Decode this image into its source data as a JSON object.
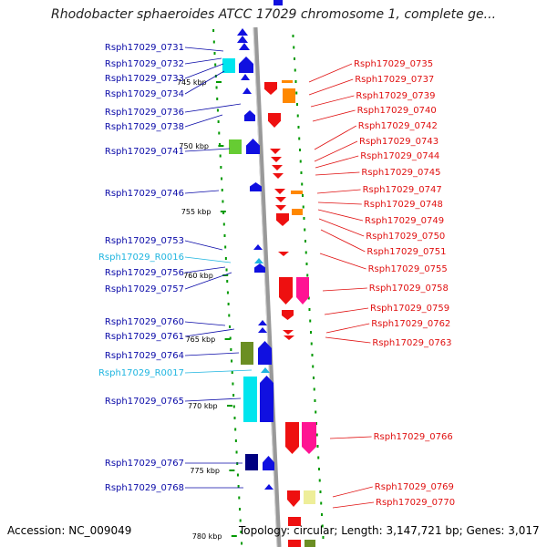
{
  "title": "Rhodobacter sphaeroides ATCC 17029 chromosome 1, complete ge...",
  "accession_label": "Accession: NC_009049",
  "topology_label": "Topology: circular; Length: 3,147,721 bp; Genes: 3,017",
  "colors": {
    "left_label": "#0a0aa8",
    "rna_label": "#1fb5e0",
    "right_label": "#e01010",
    "ruler": "#009900",
    "backbone": "#999999"
  },
  "kbp_ticks": [
    "745 kbp",
    "750 kbp",
    "755 kbp",
    "760 kbp",
    "765 kbp",
    "770 kbp",
    "775 kbp",
    "780 kbp"
  ],
  "left_genes": [
    {
      "label": "Rsph17029_0731",
      "kind": "gene"
    },
    {
      "label": "Rsph17029_0732",
      "kind": "gene"
    },
    {
      "label": "Rsph17029_0733",
      "kind": "gene"
    },
    {
      "label": "Rsph17029_0734",
      "kind": "gene"
    },
    {
      "label": "Rsph17029_0736",
      "kind": "gene"
    },
    {
      "label": "Rsph17029_0738",
      "kind": "gene"
    },
    {
      "label": "Rsph17029_0741",
      "kind": "gene"
    },
    {
      "label": "Rsph17029_0746",
      "kind": "gene"
    },
    {
      "label": "Rsph17029_0753",
      "kind": "gene"
    },
    {
      "label": "Rsph17029_R0016",
      "kind": "rna"
    },
    {
      "label": "Rsph17029_0756",
      "kind": "gene"
    },
    {
      "label": "Rsph17029_0757",
      "kind": "gene"
    },
    {
      "label": "Rsph17029_0760",
      "kind": "gene"
    },
    {
      "label": "Rsph17029_0761",
      "kind": "gene"
    },
    {
      "label": "Rsph17029_0764",
      "kind": "gene"
    },
    {
      "label": "Rsph17029_R0017",
      "kind": "rna"
    },
    {
      "label": "Rsph17029_0765",
      "kind": "gene"
    },
    {
      "label": "Rsph17029_0767",
      "kind": "gene"
    },
    {
      "label": "Rsph17029_0768",
      "kind": "gene"
    }
  ],
  "right_genes": [
    {
      "label": "Rsph17029_0735"
    },
    {
      "label": "Rsph17029_0737"
    },
    {
      "label": "Rsph17029_0739"
    },
    {
      "label": "Rsph17029_0740"
    },
    {
      "label": "Rsph17029_0742"
    },
    {
      "label": "Rsph17029_0743"
    },
    {
      "label": "Rsph17029_0744"
    },
    {
      "label": "Rsph17029_0745"
    },
    {
      "label": "Rsph17029_0747"
    },
    {
      "label": "Rsph17029_0748"
    },
    {
      "label": "Rsph17029_0749"
    },
    {
      "label": "Rsph17029_0750"
    },
    {
      "label": "Rsph17029_0751"
    },
    {
      "label": "Rsph17029_0755"
    },
    {
      "label": "Rsph17029_0758"
    },
    {
      "label": "Rsph17029_0759"
    },
    {
      "label": "Rsph17029_0762"
    },
    {
      "label": "Rsph17029_0763"
    },
    {
      "label": "Rsph17029_0766"
    },
    {
      "label": "Rsph17029_0769"
    },
    {
      "label": "Rsph17029_0770"
    }
  ]
}
